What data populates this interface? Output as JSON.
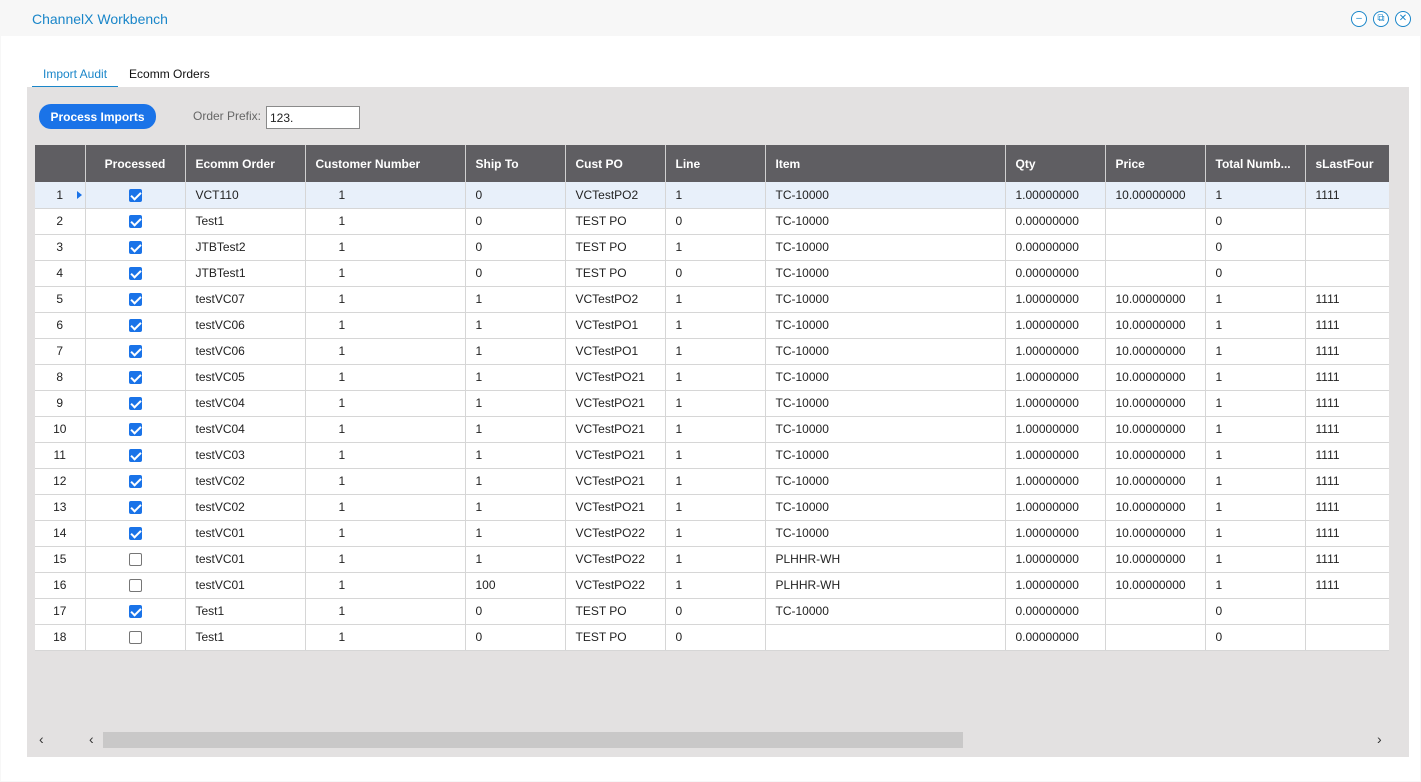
{
  "window": {
    "title": "ChannelX Workbench",
    "controls": [
      "minimize-icon",
      "restore-icon",
      "close-icon"
    ]
  },
  "tabs": [
    {
      "label": "Import Audit",
      "active": true
    },
    {
      "label": "Ecomm Orders",
      "active": false
    }
  ],
  "toolbar": {
    "process_label": "Process Imports",
    "prefix_label": "Order Prefix:",
    "prefix_value": "123."
  },
  "grid": {
    "columns": [
      "",
      "Processed",
      "Ecomm Order",
      "Customer Number",
      "Ship To",
      "Cust PO",
      "Line",
      "Item",
      "Qty",
      "Price",
      "Total Numb...",
      "sLastFour"
    ],
    "selected_row": 1,
    "rows": [
      {
        "n": "1",
        "processed": true,
        "order": "VCT110",
        "cust": "1",
        "ship": "0",
        "po": "VCTestPO2",
        "line": "1",
        "item": "TC-10000",
        "qty": "1.00000000",
        "price": "10.00000000",
        "total": "1",
        "last4": "1111"
      },
      {
        "n": "2",
        "processed": true,
        "order": "Test1",
        "cust": "1",
        "ship": "0",
        "po": "TEST PO",
        "line": "0",
        "item": "TC-10000",
        "qty": "0.00000000",
        "price": "",
        "total": "0",
        "last4": ""
      },
      {
        "n": "3",
        "processed": true,
        "order": "JTBTest2",
        "cust": "1",
        "ship": "0",
        "po": "TEST PO",
        "line": "1",
        "item": "TC-10000",
        "qty": "0.00000000",
        "price": "",
        "total": "0",
        "last4": ""
      },
      {
        "n": "4",
        "processed": true,
        "order": "JTBTest1",
        "cust": "1",
        "ship": "0",
        "po": "TEST PO",
        "line": "0",
        "item": "TC-10000",
        "qty": "0.00000000",
        "price": "",
        "total": "0",
        "last4": ""
      },
      {
        "n": "5",
        "processed": true,
        "order": "testVC07",
        "cust": "1",
        "ship": "1",
        "po": "VCTestPO2",
        "line": "1",
        "item": "TC-10000",
        "qty": "1.00000000",
        "price": "10.00000000",
        "total": "1",
        "last4": "1111"
      },
      {
        "n": "6",
        "processed": true,
        "order": "testVC06",
        "cust": "1",
        "ship": "1",
        "po": "VCTestPO1",
        "line": "1",
        "item": "TC-10000",
        "qty": "1.00000000",
        "price": "10.00000000",
        "total": "1",
        "last4": "1111"
      },
      {
        "n": "7",
        "processed": true,
        "order": "testVC06",
        "cust": "1",
        "ship": "1",
        "po": "VCTestPO1",
        "line": "1",
        "item": "TC-10000",
        "qty": "1.00000000",
        "price": "10.00000000",
        "total": "1",
        "last4": "1111"
      },
      {
        "n": "8",
        "processed": true,
        "order": "testVC05",
        "cust": "1",
        "ship": "1",
        "po": "VCTestPO21",
        "line": "1",
        "item": "TC-10000",
        "qty": "1.00000000",
        "price": "10.00000000",
        "total": "1",
        "last4": "1111"
      },
      {
        "n": "9",
        "processed": true,
        "order": "testVC04",
        "cust": "1",
        "ship": "1",
        "po": "VCTestPO21",
        "line": "1",
        "item": "TC-10000",
        "qty": "1.00000000",
        "price": "10.00000000",
        "total": "1",
        "last4": "1111"
      },
      {
        "n": "10",
        "processed": true,
        "order": "testVC04",
        "cust": "1",
        "ship": "1",
        "po": "VCTestPO21",
        "line": "1",
        "item": "TC-10000",
        "qty": "1.00000000",
        "price": "10.00000000",
        "total": "1",
        "last4": "1111"
      },
      {
        "n": "11",
        "processed": true,
        "order": "testVC03",
        "cust": "1",
        "ship": "1",
        "po": "VCTestPO21",
        "line": "1",
        "item": "TC-10000",
        "qty": "1.00000000",
        "price": "10.00000000",
        "total": "1",
        "last4": "1111"
      },
      {
        "n": "12",
        "processed": true,
        "order": "testVC02",
        "cust": "1",
        "ship": "1",
        "po": "VCTestPO21",
        "line": "1",
        "item": "TC-10000",
        "qty": "1.00000000",
        "price": "10.00000000",
        "total": "1",
        "last4": "1111"
      },
      {
        "n": "13",
        "processed": true,
        "order": "testVC02",
        "cust": "1",
        "ship": "1",
        "po": "VCTestPO21",
        "line": "1",
        "item": "TC-10000",
        "qty": "1.00000000",
        "price": "10.00000000",
        "total": "1",
        "last4": "1111"
      },
      {
        "n": "14",
        "processed": true,
        "order": "testVC01",
        "cust": "1",
        "ship": "1",
        "po": "VCTestPO22",
        "line": "1",
        "item": "TC-10000",
        "qty": "1.00000000",
        "price": "10.00000000",
        "total": "1",
        "last4": "1111"
      },
      {
        "n": "15",
        "processed": false,
        "order": "testVC01",
        "cust": "1",
        "ship": "1",
        "po": "VCTestPO22",
        "line": "1",
        "item": "PLHHR-WH",
        "qty": "1.00000000",
        "price": "10.00000000",
        "total": "1",
        "last4": "1111"
      },
      {
        "n": "16",
        "processed": false,
        "order": "testVC01",
        "cust": "1",
        "ship": "100",
        "po": "VCTestPO22",
        "line": "1",
        "item": "PLHHR-WH",
        "qty": "1.00000000",
        "price": "10.00000000",
        "total": "1",
        "last4": "1111"
      },
      {
        "n": "17",
        "processed": true,
        "order": "Test1",
        "cust": "1",
        "ship": "0",
        "po": "TEST PO",
        "line": "0",
        "item": "TC-10000",
        "qty": "0.00000000",
        "price": "",
        "total": "0",
        "last4": ""
      },
      {
        "n": "18",
        "processed": false,
        "order": "Test1",
        "cust": "1",
        "ship": "0",
        "po": "TEST PO",
        "line": "0",
        "item": "",
        "qty": "0.00000000",
        "price": "",
        "total": "0",
        "last4": ""
      }
    ]
  },
  "scrollbar": {
    "left_arrow": "‹",
    "right_arrow": "›"
  },
  "colors": {
    "accent": "#1a86c9",
    "button": "#1a73e8",
    "header_bg": "#5f5e62",
    "content_bg": "#e3e1e1"
  }
}
